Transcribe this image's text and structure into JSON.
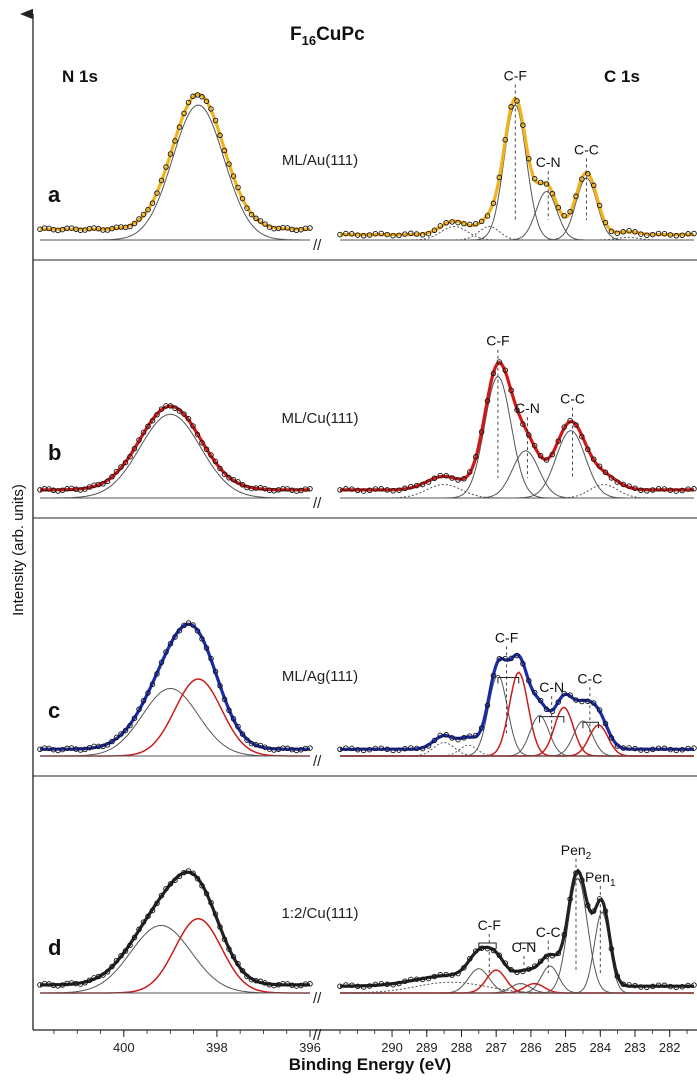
{
  "figure": {
    "title_main": "F",
    "title_sub": "16",
    "title_rest": "CuPc",
    "ylabel": "Intensity (arb. units)",
    "xlabel": "Binding Energy (eV)",
    "region_left": "N 1s",
    "region_right": "C 1s",
    "break_symbol": "//"
  },
  "colors": {
    "au_fit": "#f2b21c",
    "cu_fit": "#d01818",
    "ag_fit": "#1a2aa8",
    "pen_fit": "#222222",
    "red_component": "#c81e1e",
    "component": "#555555",
    "data_points": "#111111"
  },
  "chart_data": {
    "type": "line",
    "title": "F16CuPc",
    "xlabel": "Binding Energy (eV)",
    "ylabel": "Intensity (arb. units)",
    "x_axis_reversed": true,
    "n1s_xlim": [
      401.8,
      396
    ],
    "c1s_xlim": [
      291.5,
      281.3
    ],
    "n1s_ticks": [
      "400",
      "398",
      "396"
    ],
    "c1s_ticks": [
      "290",
      "289",
      "288",
      "287",
      "286",
      "285",
      "284",
      "283",
      "282"
    ],
    "panels": [
      {
        "label": "a",
        "sample": "ML/Au(111)",
        "fit_color": "#f2b21c",
        "n1s": {
          "background": 0.08,
          "peaks": [
            {
              "center": 398.4,
              "height": 1.0,
              "width": 0.55,
              "red": false
            }
          ]
        },
        "c1s": {
          "background": 0.04,
          "peak_labels": [
            {
              "text": "C-F",
              "sub": "",
              "x": 286.45
            },
            {
              "text": "C-N",
              "sub": "",
              "x": 285.5
            },
            {
              "text": "C-C",
              "sub": "",
              "x": 284.4
            }
          ],
          "peaks": [
            {
              "center": 286.45,
              "height": 1.0,
              "width": 0.32,
              "red": false,
              "dashed": false
            },
            {
              "center": 285.55,
              "height": 0.36,
              "width": 0.3,
              "red": false,
              "dashed": false
            },
            {
              "center": 284.4,
              "height": 0.46,
              "width": 0.3,
              "red": false,
              "dashed": false
            },
            {
              "center": 288.2,
              "height": 0.1,
              "width": 0.38,
              "red": false,
              "dashed": true
            },
            {
              "center": 287.2,
              "height": 0.1,
              "width": 0.3,
              "red": false,
              "dashed": true
            },
            {
              "center": 283.2,
              "height": 0.02,
              "width": 0.3,
              "red": false,
              "dashed": true
            }
          ]
        }
      },
      {
        "label": "b",
        "sample": "ML/Cu(111)",
        "fit_color": "#d01818",
        "n1s": {
          "background": 0.06,
          "peaks": [
            {
              "center": 399.0,
              "height": 0.62,
              "width": 0.65,
              "red": false
            }
          ]
        },
        "c1s": {
          "background": 0.06,
          "peak_labels": [
            {
              "text": "C-F",
              "sub": "",
              "x": 286.95
            },
            {
              "text": "C-N",
              "sub": "",
              "x": 286.1
            },
            {
              "text": "C-C",
              "sub": "",
              "x": 284.8
            }
          ],
          "peaks": [
            {
              "center": 286.95,
              "height": 0.9,
              "width": 0.38,
              "red": false,
              "dashed": false
            },
            {
              "center": 286.15,
              "height": 0.35,
              "width": 0.38,
              "red": false,
              "dashed": false
            },
            {
              "center": 284.85,
              "height": 0.5,
              "width": 0.42,
              "red": false,
              "dashed": false
            },
            {
              "center": 288.5,
              "height": 0.1,
              "width": 0.5,
              "red": false,
              "dashed": true
            },
            {
              "center": 283.9,
              "height": 0.1,
              "width": 0.4,
              "red": false,
              "dashed": true
            }
          ]
        }
      },
      {
        "label": "c",
        "sample": "ML/Ag(111)",
        "fit_color": "#1a2aa8",
        "n1s": {
          "background": 0.05,
          "peaks": [
            {
              "center": 399.0,
              "height": 0.5,
              "width": 0.6,
              "red": false
            },
            {
              "center": 398.4,
              "height": 0.57,
              "width": 0.5,
              "red": true
            }
          ]
        },
        "c1s": {
          "background": 0.05,
          "peak_labels": [
            {
              "text": "C-F",
              "sub": "",
              "x": 286.7
            },
            {
              "text": "C-N",
              "sub": "",
              "x": 285.4
            },
            {
              "text": "C-C",
              "sub": "",
              "x": 284.3
            }
          ],
          "brackets": [
            [
              286.95,
              286.35
            ],
            [
              285.75,
              285.05
            ],
            [
              284.5,
              284.05
            ]
          ],
          "peaks": [
            {
              "center": 286.95,
              "height": 0.6,
              "width": 0.27,
              "red": false,
              "dashed": false
            },
            {
              "center": 286.35,
              "height": 0.62,
              "width": 0.27,
              "red": true,
              "dashed": false
            },
            {
              "center": 285.75,
              "height": 0.3,
              "width": 0.27,
              "red": false,
              "dashed": false
            },
            {
              "center": 285.05,
              "height": 0.36,
              "width": 0.27,
              "red": true,
              "dashed": false
            },
            {
              "center": 284.5,
              "height": 0.26,
              "width": 0.27,
              "red": false,
              "dashed": false
            },
            {
              "center": 284.05,
              "height": 0.23,
              "width": 0.27,
              "red": true,
              "dashed": false
            },
            {
              "center": 288.5,
              "height": 0.1,
              "width": 0.3,
              "red": false,
              "dashed": true
            },
            {
              "center": 287.8,
              "height": 0.08,
              "width": 0.25,
              "red": false,
              "dashed": true
            }
          ]
        }
      },
      {
        "label": "d",
        "sample": "1:2/Cu(111)",
        "fit_color": "#222222",
        "n1s": {
          "background": 0.06,
          "peaks": [
            {
              "center": 399.2,
              "height": 0.5,
              "width": 0.65,
              "red": false
            },
            {
              "center": 398.4,
              "height": 0.55,
              "width": 0.5,
              "red": true
            }
          ]
        },
        "c1s": {
          "background": 0.05,
          "peak_labels": [
            {
              "text": "C-F",
              "sub": "",
              "x": 287.2
            },
            {
              "text": "C-N",
              "sub": "",
              "x": 286.2
            },
            {
              "text": "C-C",
              "sub": "",
              "x": 285.5
            },
            {
              "text": "Pen",
              "sub": "2",
              "x": 284.7
            },
            {
              "text": "Pen",
              "sub": "1",
              "x": 284.0
            }
          ],
          "brackets": [
            [
              287.5,
              287.0
            ],
            [
              286.3,
              285.9
            ]
          ],
          "peaks": [
            {
              "center": 287.5,
              "height": 0.18,
              "width": 0.3,
              "red": false,
              "dashed": false
            },
            {
              "center": 287.0,
              "height": 0.17,
              "width": 0.28,
              "red": true,
              "dashed": false
            },
            {
              "center": 286.3,
              "height": 0.07,
              "width": 0.28,
              "red": false,
              "dashed": false
            },
            {
              "center": 285.9,
              "height": 0.07,
              "width": 0.28,
              "red": true,
              "dashed": false
            },
            {
              "center": 285.45,
              "height": 0.2,
              "width": 0.25,
              "red": false,
              "dashed": false
            },
            {
              "center": 284.65,
              "height": 0.85,
              "width": 0.28,
              "red": false,
              "dashed": false
            },
            {
              "center": 283.95,
              "height": 0.6,
              "width": 0.22,
              "red": false,
              "dashed": false
            },
            {
              "center": 288.3,
              "height": 0.08,
              "width": 1.0,
              "red": false,
              "dashed": true
            }
          ]
        }
      }
    ]
  }
}
